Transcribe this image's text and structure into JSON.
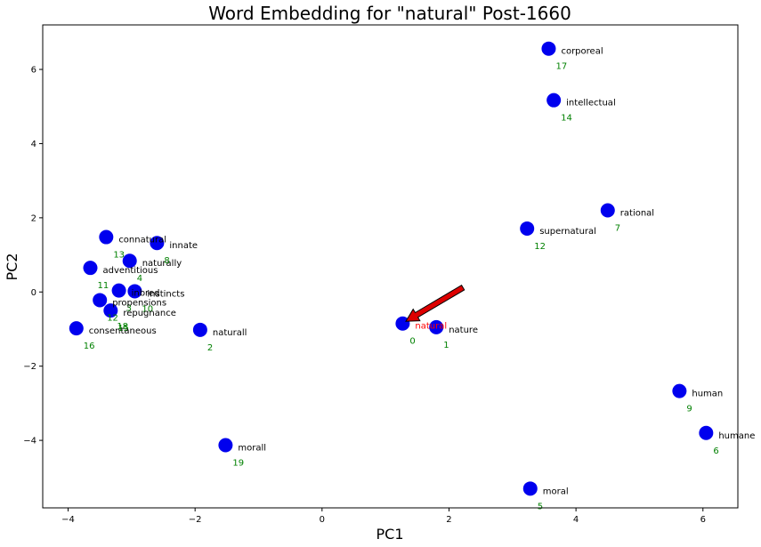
{
  "chart_data": {
    "type": "scatter",
    "title": "Word Embedding for \"natural\" Post-1660",
    "xlabel": "PC1",
    "ylabel": "PC2",
    "xlim": [
      -4.4,
      6.55
    ],
    "ylim": [
      -5.82,
      7.2
    ],
    "xticks": [
      -4,
      -2,
      0,
      2,
      4,
      6
    ],
    "xtick_labels": [
      "−4",
      "−2",
      "0",
      "2",
      "4",
      "6"
    ],
    "yticks": [
      -4,
      -2,
      0,
      2,
      4,
      6
    ],
    "ytick_labels": [
      "−4",
      "−2",
      "0",
      "2",
      "4",
      "6"
    ],
    "grid": false,
    "point_color": "#0000ee",
    "word_color": "#000000",
    "index_color": "#008000",
    "highlight_color": "#ff0000",
    "arrow_color": "#dd0000",
    "points": [
      {
        "word": "natural",
        "index": "0",
        "x": 1.27,
        "y": -0.85,
        "highlight": true
      },
      {
        "word": "nature",
        "index": "1",
        "x": 1.8,
        "y": -0.95
      },
      {
        "word": "naturall",
        "index": "2",
        "x": -1.92,
        "y": -1.02
      },
      {
        "word": "inbred",
        "index": "3",
        "x": -3.2,
        "y": 0.04
      },
      {
        "word": "naturally",
        "index": "4",
        "x": -3.03,
        "y": 0.84
      },
      {
        "word": "moral",
        "index": "5",
        "x": 3.28,
        "y": -5.3
      },
      {
        "word": "humane",
        "index": "6",
        "x": 6.05,
        "y": -3.8
      },
      {
        "word": "rational",
        "index": "7",
        "x": 4.5,
        "y": 2.2
      },
      {
        "word": "innate",
        "index": "8",
        "x": -2.6,
        "y": 1.32
      },
      {
        "word": "human",
        "index": "9",
        "x": 5.63,
        "y": -2.67
      },
      {
        "word": "instincts",
        "index": "10",
        "x": -2.95,
        "y": 0.02
      },
      {
        "word": "adventitious",
        "index": "11",
        "x": -3.65,
        "y": 0.65
      },
      {
        "word": "propensions",
        "index": "12",
        "x": -3.5,
        "y": -0.22
      },
      {
        "word": "connatural",
        "index": "13",
        "x": -3.4,
        "y": 1.48
      },
      {
        "word": "intellectual",
        "index": "14",
        "x": 3.65,
        "y": 5.17
      },
      {
        "word": "repugnance",
        "index": "15",
        "x": -3.33,
        "y": -0.5
      },
      {
        "word": "consentaneous",
        "index": "16",
        "x": -3.87,
        "y": -0.98
      },
      {
        "word": "corporeal",
        "index": "17",
        "x": 3.57,
        "y": 6.56
      },
      {
        "word": "supernatural",
        "index": "12",
        "x": 3.23,
        "y": 1.71
      },
      {
        "word": "morall",
        "index": "19",
        "x": -1.52,
        "y": -4.13
      }
    ],
    "extra_index_labels": [
      {
        "index": "18",
        "x": -3.33,
        "y": -0.5
      }
    ],
    "arrow": {
      "from": [
        2.22,
        0.12
      ],
      "to": [
        1.32,
        -0.79
      ]
    }
  }
}
